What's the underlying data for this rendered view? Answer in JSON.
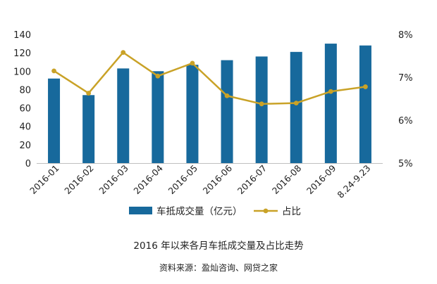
{
  "chart_data": {
    "type": "bar",
    "title": "2016 年以来各月车抵成交量及占比走势",
    "source": "资料来源：盈灿咨询、网贷之家",
    "categories": [
      "2016-01",
      "2016-02",
      "2016-03",
      "2016-04",
      "2016-05",
      "2016-06",
      "2016-07",
      "2016-08",
      "2016-09",
      "8.24-9.23"
    ],
    "y_left": {
      "min": 0,
      "max": 140,
      "ticks": [
        "0",
        "20",
        "40",
        "60",
        "80",
        "100",
        "120",
        "140"
      ]
    },
    "y_right": {
      "min": 5,
      "max": 8,
      "ticks": [
        "5%",
        "6%",
        "7%",
        "8%"
      ]
    },
    "grid": false,
    "legend_position": "bottom",
    "series": [
      {
        "name": "车抵成交量（亿元）",
        "type": "bar",
        "axis": "left",
        "color": "#17699c",
        "values": [
          92,
          74,
          103,
          100,
          107,
          112,
          116,
          121,
          130,
          128
        ]
      },
      {
        "name": "占比",
        "type": "line",
        "axis": "right",
        "color": "#c9a227",
        "values": [
          7.15,
          6.63,
          7.58,
          7.03,
          7.33,
          6.57,
          6.38,
          6.4,
          6.67,
          6.78
        ]
      }
    ]
  }
}
